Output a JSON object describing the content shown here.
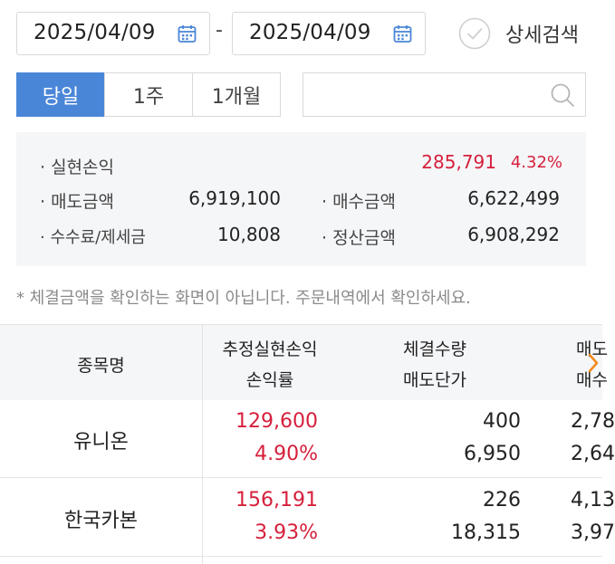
{
  "date_range": {
    "start": "2025/04/09",
    "separator": "-",
    "end": "2025/04/09"
  },
  "detail_search": {
    "label": "상세검색",
    "checked": false
  },
  "period_tabs": [
    {
      "label": "당일",
      "active": true
    },
    {
      "label": "1주",
      "active": false
    },
    {
      "label": "1개월",
      "active": false
    }
  ],
  "search": {
    "value": "",
    "placeholder": ""
  },
  "summary": {
    "realized_pl_label": "· 실현손익",
    "realized_pl_value": "285,791",
    "realized_pl_rate": "4.32%",
    "sell_amount_label": "· 매도금액",
    "sell_amount_value": "6,919,100",
    "buy_amount_label": "· 매수금액",
    "buy_amount_value": "6,622,499",
    "fee_tax_label": "· 수수료/제세금",
    "fee_tax_value": "10,808",
    "settle_amount_label": "· 정산금액",
    "settle_amount_value": "6,908,292"
  },
  "notice": "* 체결금액을 확인하는 화면이 아닙니다. 주문내역에서 확인하세요.",
  "table": {
    "headers": {
      "name": "종목명",
      "pl_line1": "추정실현손익",
      "pl_line2": "손익률",
      "qty_line1": "체결수량",
      "qty_line2": "매도단가",
      "amt_line1": "매도",
      "amt_line2": "매수"
    },
    "rows": [
      {
        "name": "유니온",
        "pl": "129,600",
        "rate": "4.90%",
        "qty": "400",
        "sell_price": "6,950",
        "sell_amt": "2,78",
        "buy_amt": "2,64"
      },
      {
        "name": "한국카본",
        "pl": "156,191",
        "rate": "3.93%",
        "qty": "226",
        "sell_price": "18,315",
        "sell_amt": "4,13",
        "buy_amt": "3,97"
      }
    ]
  },
  "colors": {
    "accent": "#4a86d8",
    "profit": "#d6203c"
  }
}
